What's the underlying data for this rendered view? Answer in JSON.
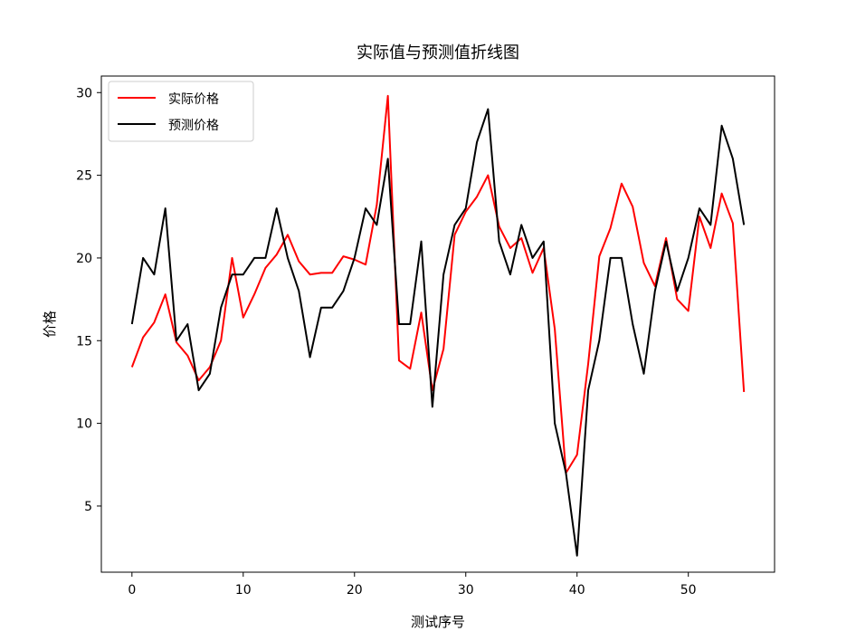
{
  "chart_data": {
    "type": "line",
    "title": "实际值与预测值折线图",
    "xlabel": "测试序号",
    "ylabel": "价格",
    "xlim": [
      -2.75,
      57.75
    ],
    "ylim": [
      1.0,
      31.0
    ],
    "xticks": [
      0,
      10,
      20,
      30,
      40,
      50
    ],
    "yticks": [
      5,
      10,
      15,
      20,
      25,
      30
    ],
    "grid": false,
    "legend_position": "top-left",
    "series": [
      {
        "name": "实际价格",
        "color": "#ff0000",
        "x": [
          0,
          1,
          2,
          3,
          4,
          5,
          6,
          7,
          8,
          9,
          10,
          11,
          12,
          13,
          14,
          15,
          16,
          17,
          18,
          19,
          20,
          21,
          22,
          23,
          24,
          25,
          26,
          27,
          28,
          29,
          30,
          31,
          32,
          33,
          34,
          35,
          36,
          37,
          38,
          39,
          40,
          41,
          42,
          43,
          44,
          45,
          46,
          47,
          48,
          49,
          50,
          51,
          52,
          53,
          54,
          55
        ],
        "values": [
          13.4,
          15.2,
          16.1,
          17.8,
          14.9,
          14.1,
          12.6,
          13.4,
          15.0,
          20.0,
          16.4,
          17.8,
          19.4,
          20.2,
          21.4,
          19.8,
          19.0,
          19.1,
          19.1,
          20.1,
          19.9,
          19.6,
          23.2,
          29.8,
          13.8,
          13.3,
          16.7,
          12.0,
          14.5,
          21.4,
          22.8,
          23.7,
          25.0,
          21.9,
          20.6,
          21.2,
          19.1,
          20.6,
          15.7,
          7.0,
          8.1,
          13.6,
          20.1,
          21.8,
          24.5,
          23.1,
          19.7,
          18.3,
          21.2,
          17.5,
          16.8,
          22.5,
          20.6,
          23.9,
          22.1,
          11.9
        ]
      },
      {
        "name": "预测价格",
        "color": "#000000",
        "x": [
          0,
          1,
          2,
          3,
          4,
          5,
          6,
          7,
          8,
          9,
          10,
          11,
          12,
          13,
          14,
          15,
          16,
          17,
          18,
          19,
          20,
          21,
          22,
          23,
          24,
          25,
          26,
          27,
          28,
          29,
          30,
          31,
          32,
          33,
          34,
          35,
          36,
          37,
          38,
          39,
          40,
          41,
          42,
          43,
          44,
          45,
          46,
          47,
          48,
          49,
          50,
          51,
          52,
          53,
          54,
          55
        ],
        "values": [
          16,
          20,
          19,
          23,
          15,
          16,
          12,
          13,
          17,
          19,
          19,
          20,
          20,
          23,
          20,
          18,
          14,
          17,
          17,
          18,
          20,
          23,
          22,
          26,
          16,
          16,
          21,
          11,
          19,
          22,
          23,
          27,
          29,
          21,
          19,
          22,
          20,
          21,
          10,
          7,
          2,
          12,
          15,
          20,
          20,
          16,
          13,
          18,
          21,
          18,
          20,
          23,
          22,
          28,
          26,
          22
        ]
      }
    ]
  }
}
